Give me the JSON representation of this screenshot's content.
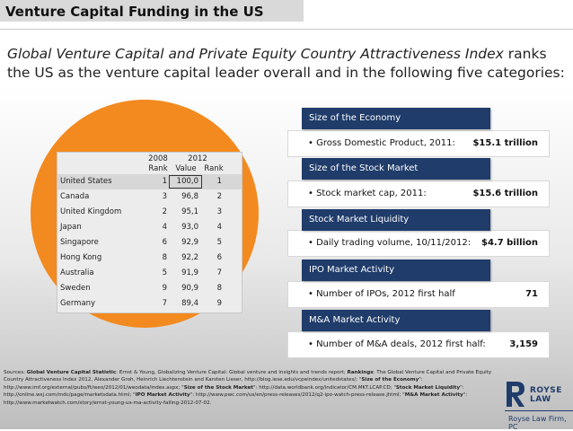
{
  "header": {
    "title": "Venture Capital Funding in the US"
  },
  "intro": {
    "italic": "Global Venture Capital and Private Equity Country Attractiveness Index",
    "rest": " ranks the US as the venture capital leader overall and in the following five categories:"
  },
  "table": {
    "col_2008": "2008",
    "col_2012": "2012",
    "col_rank_2008": "Rank",
    "col_value": "Value",
    "col_rank_2012": "Rank",
    "rows": [
      {
        "country": "United States",
        "rank2008": "1",
        "value": "100,0",
        "rank2012": "1"
      },
      {
        "country": "Canada",
        "rank2008": "3",
        "value": "96,8",
        "rank2012": "2"
      },
      {
        "country": "United Kingdom",
        "rank2008": "2",
        "value": "95,1",
        "rank2012": "3"
      },
      {
        "country": "Japan",
        "rank2008": "4",
        "value": "93,0",
        "rank2012": "4"
      },
      {
        "country": "Singapore",
        "rank2008": "6",
        "value": "92,9",
        "rank2012": "5"
      },
      {
        "country": "Hong Kong",
        "rank2008": "8",
        "value": "92,2",
        "rank2012": "6"
      },
      {
        "country": "Australia",
        "rank2008": "5",
        "value": "91,9",
        "rank2012": "7"
      },
      {
        "country": "Sweden",
        "rank2008": "9",
        "value": "90,9",
        "rank2012": "8"
      },
      {
        "country": "Germany",
        "rank2008": "7",
        "value": "89,4",
        "rank2012": "9"
      }
    ]
  },
  "categories": [
    {
      "header": "Size of the Economy",
      "label": "• Gross Domestic Product, 2011:",
      "value": "$15.1 trillion"
    },
    {
      "header": "Size of the Stock Market",
      "label": "• Stock market cap, 2011:",
      "value": "$15.6 trillion"
    },
    {
      "header": "Stock Market Liquidity",
      "label": "• Daily trading volume, 10/11/2012:",
      "value": "$4.7 billion"
    },
    {
      "header": "IPO Market Activity",
      "label": "• Number of IPOs, 2012 first half",
      "value": "71"
    },
    {
      "header": "M&A Market Activity",
      "label": "• Number of M&A deals, 2012 first half:",
      "value": "3,159"
    }
  ],
  "sources": {
    "s1": "Sources: ",
    "b1": "Global Venture Capital Statistic",
    "s2": ": Ernst & Young, Globalizing Venture Capital: Global venture and insights and trends report; ",
    "b2": "Rankings",
    "s3": ": The Global Venture Capital and Private Equity Country Attractiveness Index 2012, Alexander Groh, Heinrich Liechtenstein and Karsten Lieser, http://blog.iese.edu/vcpeindex/unitedstates/; \"",
    "b3": "Size of the Economy",
    "s4": "\": http://www.imf.org/external/pubs/ft/weo/2012/01/weodata/index.aspx; \"",
    "b4": "Size of the Stock Market",
    "s5": "\": http://data.worldbank.org/indicator/CM.MKT.LCAP.CD; \"",
    "b5": "Stock Market Liquidity",
    "s6": "\": http://online.wsj.com/mdc/page/marketsdata.html; \"",
    "b6": "IPO Market Activity",
    "s7": "\": http://www.pwc.com/us/en/press-releases/2012/q2-ipo-watch-press-release.jhtml; \"",
    "b7": "M&A Market Activity",
    "s8": "\": http://www.marketwatch.com/story/ernst-young-us-ma-activity-falling-2012-07-02."
  },
  "logo": {
    "name": "ROYSE LAW",
    "firm": "Royse Law Firm, PC"
  },
  "colors": {
    "orange": "#f38a1f",
    "navy": "#1f3c6a"
  }
}
